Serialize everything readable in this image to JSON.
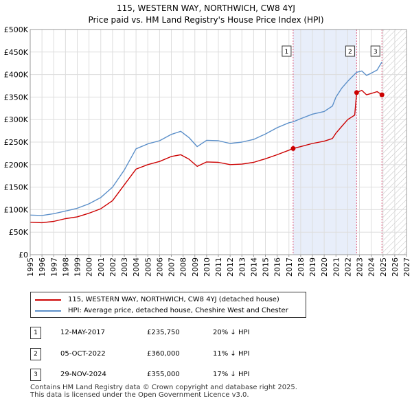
{
  "title_line1": "115, WESTERN WAY, NORTHWICH, CW8 4YJ",
  "title_line2": "Price paid vs. HM Land Registry's House Price Index (HPI)",
  "colors": {
    "price_paid": "#cc0000",
    "hpi": "#5b8fc9",
    "highlight": "#e8eefa",
    "marker_line": "#e06080"
  },
  "chart_data": {
    "type": "line",
    "xlim": [
      1995,
      2027
    ],
    "ylim": [
      0,
      500000
    ],
    "x_ticks": [
      "1995",
      "1996",
      "1997",
      "1998",
      "1999",
      "2000",
      "2001",
      "2002",
      "2003",
      "2004",
      "2005",
      "2006",
      "2007",
      "2008",
      "2009",
      "2010",
      "2011",
      "2012",
      "2013",
      "2014",
      "2015",
      "2016",
      "2017",
      "2018",
      "2019",
      "2020",
      "2021",
      "2022",
      "2023",
      "2024",
      "2025",
      "2026",
      "2027"
    ],
    "y_ticks": [
      {
        "value": 0,
        "label": "£0"
      },
      {
        "value": 50000,
        "label": "£50K"
      },
      {
        "value": 100000,
        "label": "£100K"
      },
      {
        "value": 150000,
        "label": "£150K"
      },
      {
        "value": 200000,
        "label": "£200K"
      },
      {
        "value": 250000,
        "label": "£250K"
      },
      {
        "value": 300000,
        "label": "£300K"
      },
      {
        "value": 350000,
        "label": "£350K"
      },
      {
        "value": 400000,
        "label": "£400K"
      },
      {
        "value": 450000,
        "label": "£450K"
      },
      {
        "value": 500000,
        "label": "£500K"
      }
    ],
    "highlight_range": [
      2017.36,
      2022.76
    ],
    "future_hatch_from": 2024.91,
    "series": [
      {
        "name": "115, WESTERN WAY, NORTHWICH, CW8 4YJ (detached house)",
        "points": [
          [
            1995.0,
            72000
          ],
          [
            1996.0,
            71000
          ],
          [
            1997.0,
            74000
          ],
          [
            1998.0,
            80000
          ],
          [
            1999.0,
            84000
          ],
          [
            2000.0,
            92000
          ],
          [
            2001.0,
            102000
          ],
          [
            2002.0,
            120000
          ],
          [
            2003.0,
            155000
          ],
          [
            2004.0,
            190000
          ],
          [
            2005.0,
            200000
          ],
          [
            2006.0,
            207000
          ],
          [
            2007.0,
            218000
          ],
          [
            2007.8,
            222000
          ],
          [
            2008.5,
            212000
          ],
          [
            2009.2,
            196000
          ],
          [
            2010.0,
            206000
          ],
          [
            2011.0,
            205000
          ],
          [
            2012.0,
            200000
          ],
          [
            2013.0,
            201000
          ],
          [
            2014.0,
            205000
          ],
          [
            2015.0,
            213000
          ],
          [
            2016.0,
            222000
          ],
          [
            2017.0,
            232000
          ],
          [
            2017.36,
            235750
          ],
          [
            2018.0,
            240000
          ],
          [
            2019.0,
            247000
          ],
          [
            2020.0,
            252000
          ],
          [
            2020.7,
            258000
          ],
          [
            2021.0,
            270000
          ],
          [
            2021.5,
            285000
          ],
          [
            2022.0,
            300000
          ],
          [
            2022.6,
            310000
          ],
          [
            2022.76,
            360000
          ],
          [
            2023.2,
            365000
          ],
          [
            2023.6,
            355000
          ],
          [
            2024.0,
            358000
          ],
          [
            2024.5,
            362000
          ],
          [
            2024.91,
            355000
          ]
        ]
      },
      {
        "name": "HPI: Average price, detached house, Cheshire West and Chester",
        "points": [
          [
            1995.0,
            88000
          ],
          [
            1996.0,
            87000
          ],
          [
            1997.0,
            91000
          ],
          [
            1998.0,
            97000
          ],
          [
            1999.0,
            103000
          ],
          [
            2000.0,
            113000
          ],
          [
            2001.0,
            127000
          ],
          [
            2002.0,
            150000
          ],
          [
            2003.0,
            188000
          ],
          [
            2004.0,
            235000
          ],
          [
            2005.0,
            246000
          ],
          [
            2006.0,
            253000
          ],
          [
            2007.0,
            267000
          ],
          [
            2007.8,
            274000
          ],
          [
            2008.5,
            260000
          ],
          [
            2009.2,
            240000
          ],
          [
            2010.0,
            254000
          ],
          [
            2011.0,
            253000
          ],
          [
            2012.0,
            247000
          ],
          [
            2013.0,
            250000
          ],
          [
            2014.0,
            256000
          ],
          [
            2015.0,
            268000
          ],
          [
            2016.0,
            282000
          ],
          [
            2017.0,
            293000
          ],
          [
            2017.36,
            295000
          ],
          [
            2018.0,
            302000
          ],
          [
            2019.0,
            312000
          ],
          [
            2020.0,
            318000
          ],
          [
            2020.7,
            330000
          ],
          [
            2021.0,
            350000
          ],
          [
            2021.5,
            370000
          ],
          [
            2022.0,
            385000
          ],
          [
            2022.76,
            405000
          ],
          [
            2023.2,
            408000
          ],
          [
            2023.6,
            398000
          ],
          [
            2024.0,
            403000
          ],
          [
            2024.5,
            410000
          ],
          [
            2024.91,
            428000
          ]
        ]
      }
    ],
    "sales": [
      {
        "num": "1",
        "x": 2017.36,
        "price": 235750
      },
      {
        "num": "2",
        "x": 2022.76,
        "price": 360000
      },
      {
        "num": "3",
        "x": 2024.91,
        "price": 355000
      }
    ]
  },
  "legend": {
    "price_paid_label": "115, WESTERN WAY, NORTHWICH, CW8 4YJ (detached house)",
    "hpi_label": "HPI: Average price, detached house, Cheshire West and Chester"
  },
  "sales_table": [
    {
      "num": "1",
      "date": "12-MAY-2017",
      "price": "£235,750",
      "hpi": "20% ↓ HPI"
    },
    {
      "num": "2",
      "date": "05-OCT-2022",
      "price": "£360,000",
      "hpi": "11% ↓ HPI"
    },
    {
      "num": "3",
      "date": "29-NOV-2024",
      "price": "£355,000",
      "hpi": "17% ↓ HPI"
    }
  ],
  "footer_line1": "Contains HM Land Registry data © Crown copyright and database right 2025.",
  "footer_line2": "This data is licensed under the Open Government Licence v3.0."
}
